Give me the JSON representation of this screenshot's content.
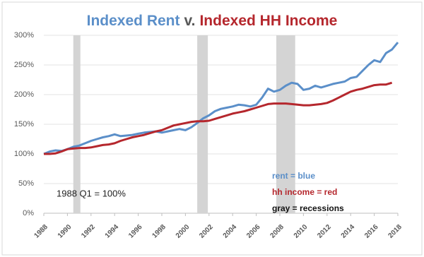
{
  "chart_data": {
    "type": "line",
    "title": [
      {
        "text": "Indexed Rent",
        "color": "#5b8fc9"
      },
      {
        "text": "v.",
        "color": "#595959"
      },
      {
        "text": "Indexed HH Income",
        "color": "#b5272d"
      }
    ],
    "x": [
      1988,
      1988.5,
      1989,
      1989.5,
      1990,
      1990.5,
      1991,
      1991.5,
      1992,
      1992.5,
      1993,
      1993.5,
      1994,
      1994.5,
      1995,
      1995.5,
      1996,
      1996.5,
      1997,
      1997.5,
      1998,
      1998.5,
      1999,
      1999.5,
      2000,
      2000.5,
      2001,
      2001.5,
      2002,
      2002.5,
      2003,
      2003.5,
      2004,
      2004.5,
      2005,
      2005.5,
      2006,
      2006.5,
      2007,
      2007.5,
      2008,
      2008.5,
      2009,
      2009.5,
      2010,
      2010.5,
      2011,
      2011.5,
      2012,
      2012.5,
      2013,
      2013.5,
      2014,
      2014.5,
      2015,
      2015.5,
      2016,
      2016.5,
      2017,
      2017.5,
      2018
    ],
    "series": [
      {
        "name": "rent",
        "color": "#5b8fc9",
        "values": [
          100,
          104,
          106,
          105,
          108,
          112,
          114,
          118,
          122,
          125,
          128,
          130,
          133,
          130,
          131,
          132,
          134,
          136,
          137,
          138,
          136,
          138,
          140,
          142,
          140,
          145,
          152,
          160,
          165,
          172,
          176,
          178,
          180,
          183,
          182,
          180,
          183,
          195,
          210,
          205,
          208,
          215,
          220,
          218,
          208,
          210,
          215,
          212,
          215,
          218,
          220,
          222,
          228,
          230,
          240,
          250,
          258,
          255,
          270,
          276,
          288
        ]
      },
      {
        "name": "hh income",
        "color": "#b5272d",
        "values": [
          100,
          100,
          101,
          104,
          108,
          109,
          110,
          110,
          111,
          113,
          115,
          116,
          118,
          122,
          125,
          128,
          130,
          132,
          135,
          138,
          140,
          144,
          148,
          150,
          152,
          154,
          155,
          155,
          156,
          159,
          162,
          165,
          168,
          170,
          172,
          175,
          178,
          181,
          184,
          185,
          185,
          185,
          184,
          183,
          182,
          182,
          183,
          184,
          186,
          190,
          195,
          200,
          205,
          208,
          210,
          213,
          216,
          217,
          217,
          220,
          null
        ]
      }
    ],
    "recessions": [
      [
        1990.5,
        1991.1
      ],
      [
        2001.0,
        2001.9
      ],
      [
        2007.7,
        2009.3
      ]
    ],
    "recession_color": "#d4d4d4",
    "annotations": [
      {
        "text": "1988 Q1 = 100%",
        "color": "#222222"
      },
      {
        "text": "rent = blue",
        "color": "#5b8fc9"
      },
      {
        "text": "hh income = red",
        "color": "#b5272d"
      },
      {
        "text": "gray = recessions",
        "color": "#111111"
      }
    ],
    "xlim": [
      1988,
      2018
    ],
    "xticks": [
      1988,
      1990,
      1992,
      1994,
      1996,
      1998,
      2000,
      2002,
      2004,
      2006,
      2008,
      2010,
      2012,
      2014,
      2016,
      2018
    ],
    "ylim": [
      0,
      300
    ],
    "yticks": [
      {
        "value": 0,
        "label": "0%"
      },
      {
        "value": 50,
        "label": "50%"
      },
      {
        "value": 100,
        "label": "100%"
      },
      {
        "value": 150,
        "label": "150%"
      },
      {
        "value": 200,
        "label": "200%"
      },
      {
        "value": 250,
        "label": "250%"
      },
      {
        "value": 300,
        "label": "300%"
      }
    ],
    "grid": true
  }
}
